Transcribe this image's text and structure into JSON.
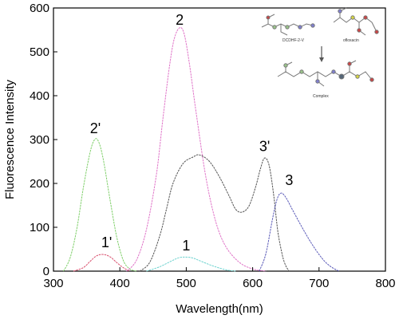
{
  "chart_data": {
    "type": "line",
    "title": "",
    "xlabel": "Wavelength(nm)",
    "ylabel": "Fluorescence Intensity",
    "xlim": [
      300,
      800
    ],
    "ylim": [
      0,
      600
    ],
    "x_ticks": [
      300,
      400,
      500,
      600,
      700,
      800
    ],
    "y_ticks": [
      0,
      100,
      200,
      300,
      400,
      500,
      600
    ],
    "grid": false,
    "legend": "none",
    "series": [
      {
        "name": "1'",
        "color": "#d9506e",
        "x": [
          330,
          345,
          355,
          365,
          375,
          385,
          395,
          405,
          415
        ],
        "y": [
          0,
          8,
          22,
          35,
          38,
          33,
          20,
          8,
          0
        ]
      },
      {
        "name": "2'",
        "color": "#7fcf6a",
        "x": [
          315,
          325,
          335,
          345,
          355,
          362,
          368,
          375,
          385,
          395,
          405,
          415,
          425
        ],
        "y": [
          0,
          30,
          95,
          190,
          270,
          300,
          295,
          255,
          165,
          80,
          25,
          5,
          0
        ]
      },
      {
        "name": "1",
        "color": "#6fd3cf",
        "x": [
          440,
          460,
          480,
          490,
          500,
          510,
          520,
          540,
          560,
          575
        ],
        "y": [
          0,
          10,
          25,
          31,
          32,
          30,
          24,
          12,
          3,
          0
        ]
      },
      {
        "name": "2",
        "color": "#e074c8",
        "x": [
          410,
          425,
          440,
          455,
          465,
          475,
          482,
          490,
          497,
          505,
          515,
          530,
          545,
          560,
          580,
          600,
          620
        ],
        "y": [
          0,
          25,
          95,
          220,
          350,
          470,
          530,
          555,
          540,
          470,
          360,
          210,
          110,
          55,
          20,
          5,
          0
        ]
      },
      {
        "name": "3'",
        "color": "#555555",
        "x": [
          430,
          445,
          460,
          470,
          480,
          495,
          510,
          520,
          535,
          550,
          565,
          575,
          585,
          595,
          605,
          612,
          618,
          625,
          632,
          638,
          645,
          650,
          655
        ],
        "y": [
          0,
          20,
          80,
          140,
          200,
          245,
          260,
          265,
          250,
          215,
          170,
          140,
          135,
          150,
          195,
          235,
          258,
          240,
          170,
          90,
          35,
          12,
          0
        ]
      },
      {
        "name": "3",
        "color": "#5a5ab8",
        "x": [
          610,
          620,
          630,
          637,
          643,
          650,
          660,
          670,
          680,
          690,
          700,
          710,
          720,
          730
        ],
        "y": [
          0,
          40,
          120,
          165,
          178,
          168,
          140,
          112,
          85,
          60,
          38,
          20,
          8,
          0
        ]
      }
    ],
    "curve_labels": [
      {
        "text": "2",
        "x": 490,
        "y": 562
      },
      {
        "text": "2'",
        "x": 363,
        "y": 315
      },
      {
        "text": "3'",
        "x": 618,
        "y": 274
      },
      {
        "text": "3",
        "x": 655,
        "y": 196
      },
      {
        "text": "1'",
        "x": 380,
        "y": 55
      },
      {
        "text": "1",
        "x": 500,
        "y": 47
      }
    ],
    "inset": {
      "labels": [
        "DCDHF-2-V",
        "ofloxacin",
        "Complex"
      ]
    }
  }
}
